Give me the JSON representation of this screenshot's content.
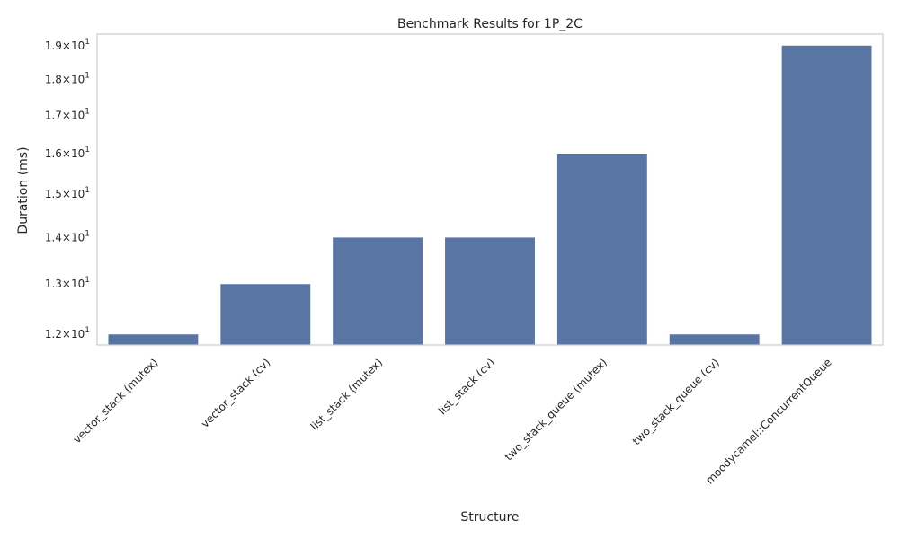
{
  "chart_data": {
    "type": "bar",
    "title": "Benchmark Results for 1P_2C",
    "xlabel": "Structure",
    "ylabel": "Duration (ms)",
    "yscale": "log",
    "categories": [
      "vector_stack (mutex)",
      "vector_stack (cv)",
      "list_stack (mutex)",
      "list_stack (cv)",
      "two_stack_queue (mutex)",
      "two_stack_queue (cv)",
      "moodycamel::ConcurrentQueue"
    ],
    "values": [
      12,
      13,
      14,
      14,
      16,
      12,
      19
    ],
    "ylim": [
      11.8,
      19.35
    ],
    "yticks": [
      12,
      13,
      14,
      15,
      16,
      17,
      18,
      19
    ],
    "ytick_labels": [
      {
        "mantissa": "1.2",
        "base": "10",
        "exp": "1"
      },
      {
        "mantissa": "1.3",
        "base": "10",
        "exp": "1"
      },
      {
        "mantissa": "1.4",
        "base": "10",
        "exp": "1"
      },
      {
        "mantissa": "1.5",
        "base": "10",
        "exp": "1"
      },
      {
        "mantissa": "1.6",
        "base": "10",
        "exp": "1"
      },
      {
        "mantissa": "1.7",
        "base": "10",
        "exp": "1"
      },
      {
        "mantissa": "1.8",
        "base": "10",
        "exp": "1"
      },
      {
        "mantissa": "1.9",
        "base": "10",
        "exp": "1"
      }
    ],
    "grid": false,
    "bar_color": "#5975a4",
    "frame_color": "#cccccc"
  }
}
